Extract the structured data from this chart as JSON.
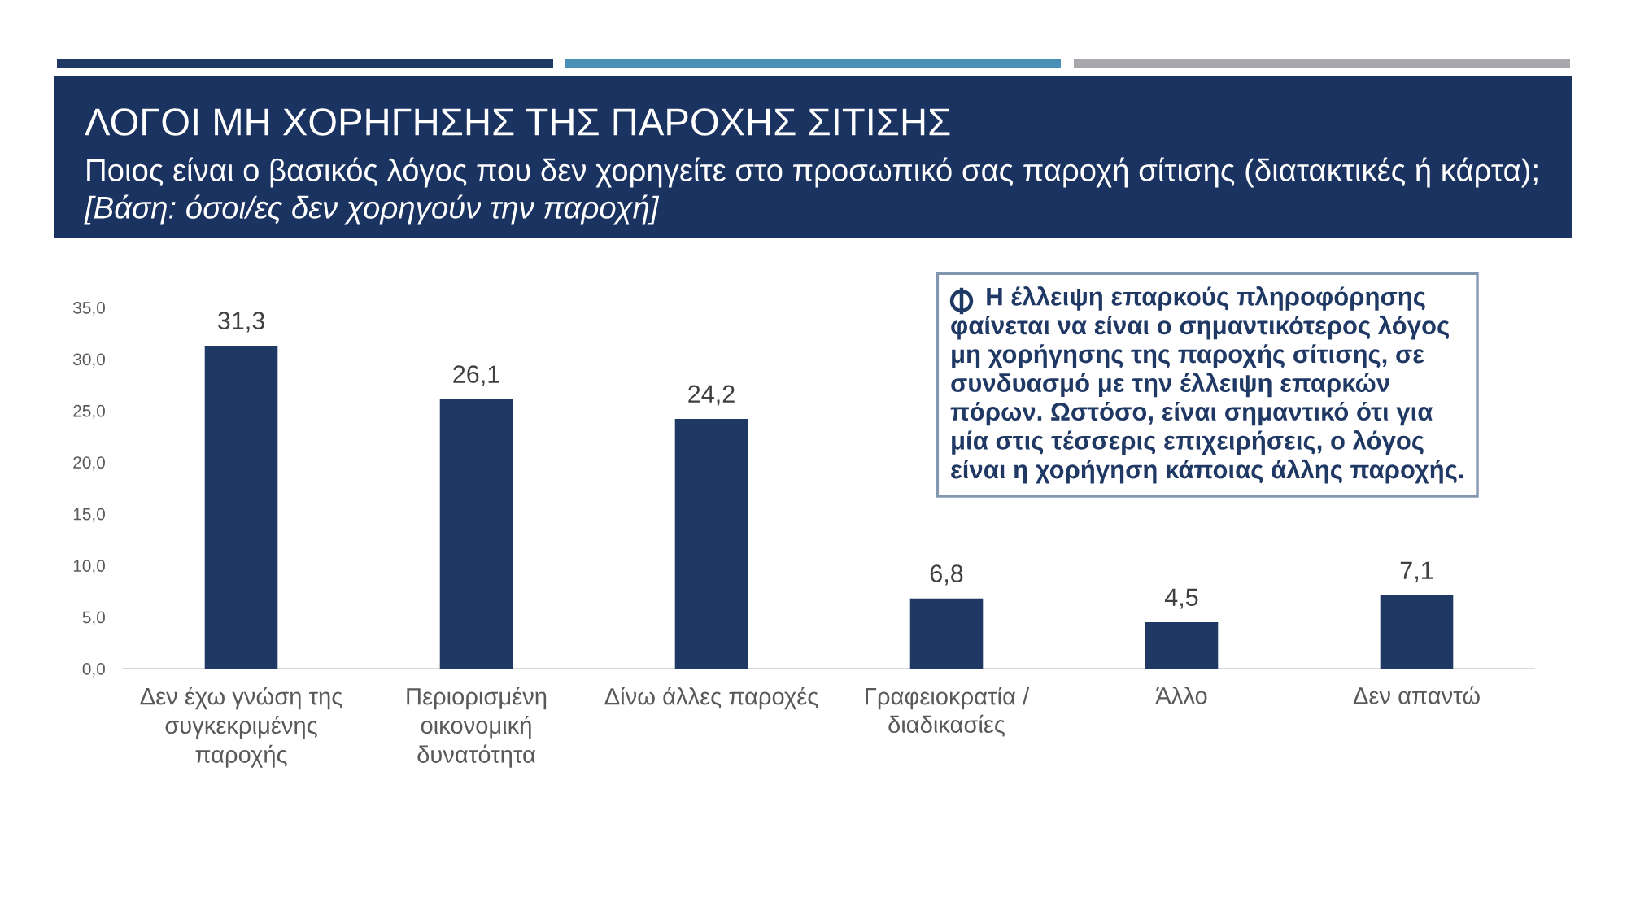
{
  "chart_data": {
    "type": "bar",
    "title": "ΛΟΓΟΙ ΜΗ ΧΟΡΗΓΗΣΗΣ ΤΗΣ ΠΑΡΟΧΗΣ ΣΙΤΙΣΗΣ",
    "subtitle": "Ποιος είναι ο βασικός λόγος που δεν χορηγείτε στο προσωπικό σας παροχή σίτισης (διατακτικές ή κάρτα);\n[Βάση: όσοι/ες δεν χορηγούν την παροχή]",
    "categories": [
      "Δεν έχω γνώση της\nσυγκεκριμένης\nπαροχής",
      "Περιορισμένη\nοικονομική\nδυνατότητα",
      "Δίνω άλλες παροχές",
      "Γραφειοκρατία /\nδιαδικασίες",
      "Άλλο",
      "Δεν απαντώ"
    ],
    "values": [
      31.3,
      26.1,
      24.2,
      6.8,
      4.5,
      7.1
    ],
    "value_labels": [
      "31,3",
      "26,1",
      "24,2",
      "6,8",
      "4,5",
      "7,1"
    ],
    "color": "#1f3864",
    "ylim": [
      0,
      35
    ],
    "yticks": [
      {
        "value": 0,
        "label": "0,0"
      },
      {
        "value": 5,
        "label": "5,0"
      },
      {
        "value": 10,
        "label": "10,0"
      },
      {
        "value": 15,
        "label": "15,0"
      },
      {
        "value": 20,
        "label": "20,0"
      },
      {
        "value": 25,
        "label": "25,0"
      },
      {
        "value": 30,
        "label": "30,0"
      },
      {
        "value": 35,
        "label": "35,0"
      }
    ],
    "grid": false,
    "annotations": [
      "Η έλλειψη επαρκούς πληροφόρησης\nφαίνεται να είναι ο σημαντικότερος λόγος\nμη χορήγησης της παροχής σίτισης, σε\nσυνδυασμό με την έλλειψη επαρκών\nπόρων. Ωστόσο, είναι σημαντικό ότι για\nμία στις τέσσερις επιχειρήσεις, ο λόγος\nείναι η χορήγηση κάποιας άλλης παροχής."
    ]
  }
}
